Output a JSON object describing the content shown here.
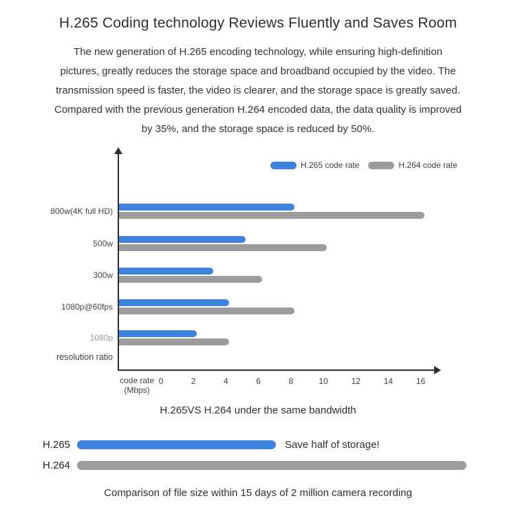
{
  "page": {
    "title": "H.265 Coding technology Reviews Fluently and Saves Room",
    "intro_lines": [
      "The new generation of H.265 encoding technology, while ensuring high-definition",
      "pictures, greatly reduces the storage space and broadband occupied by the video. The",
      "transmission speed is faster, the video is clearer, and the storage space is greatly saved.",
      "Compared with the previous generation H.264 encoded data, the data quality is improved",
      "by 35%, and the storage space is reduced by 50%."
    ]
  },
  "colors": {
    "h265_blue": "#3e84de",
    "h264_gray": "#9c9c9c",
    "axis": "#2d2d2d"
  },
  "chart_data": [
    {
      "type": "bar",
      "orientation": "horizontal",
      "title": "H.265VS H.264 under the same bandwidth",
      "categories": [
        "800w(4K full HD)",
        "500w",
        "300w",
        "1080p@60fps",
        "1080p"
      ],
      "muted_categories": [
        "1080p"
      ],
      "series": [
        {
          "name": "H.265 code rate",
          "values": [
            8,
            5,
            3,
            4,
            2
          ],
          "color": "#3e84de"
        },
        {
          "name": "H.264 code rate",
          "values": [
            16,
            10,
            6,
            8,
            4
          ],
          "color": "#9c9c9c"
        }
      ],
      "xlabel_line1": "code rate",
      "xlabel_line2": "(Mbps)",
      "ylabel": "resolution ratio",
      "xlim": [
        0,
        16
      ],
      "xticks": [
        0,
        2,
        4,
        6,
        8,
        10,
        12,
        14,
        16
      ],
      "legend_position": "top-right",
      "grid": false
    },
    {
      "type": "bar",
      "orientation": "horizontal",
      "title": "Comparison of file size within 15 days of 2 million camera recording",
      "categories": [
        "H.265",
        "H.264"
      ],
      "values": [
        0.51,
        1.0
      ],
      "colors": [
        "#3e84de",
        "#9c9c9c"
      ],
      "annotation": "Save half of storage!",
      "annotation_on": "H.265"
    }
  ]
}
